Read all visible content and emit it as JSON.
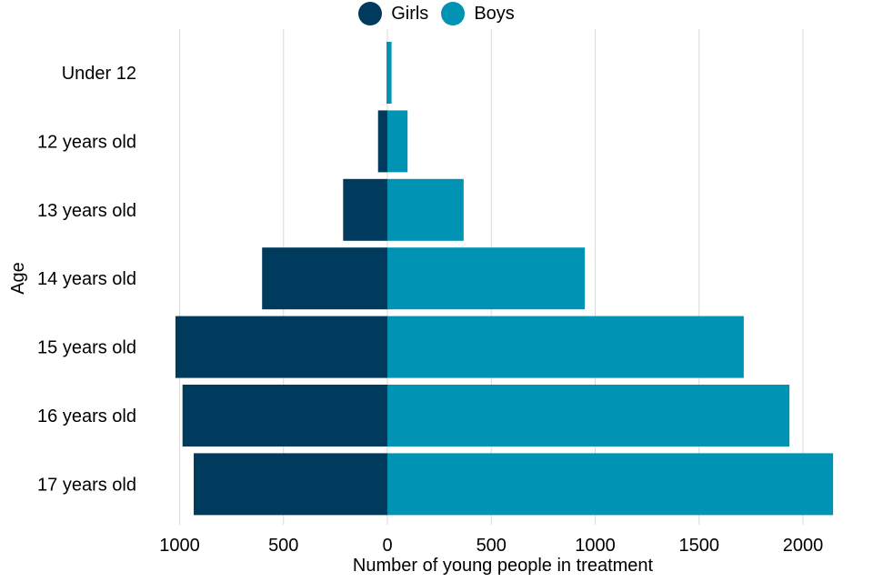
{
  "chart_data": {
    "type": "bar",
    "orientation": "horizontal",
    "layout": "population-pyramid",
    "categories": [
      "Under 12",
      "12 years old",
      "13 years old",
      "14 years old",
      "15 years old",
      "16 years old",
      "17 years old"
    ],
    "series": [
      {
        "name": "Girls",
        "values": [
          3,
          45,
          213,
          603,
          1020,
          986,
          932
        ],
        "side": "left",
        "color": "#003A5D"
      },
      {
        "name": "Boys",
        "values": [
          20,
          97,
          367,
          950,
          1715,
          1935,
          2145
        ],
        "side": "right",
        "color": "#0093B3"
      }
    ],
    "xlabel": "Number of young people in treatment",
    "ylabel": "Age",
    "xlim": [
      -1100,
      2150
    ],
    "x_ticks": [
      -1000,
      -500,
      0,
      500,
      1000,
      1500,
      2000
    ],
    "x_tick_labels": [
      "1000",
      "500",
      "0",
      "500",
      "1000",
      "1500",
      "2000"
    ],
    "grid": "vertical",
    "legend_position": "top-center"
  }
}
